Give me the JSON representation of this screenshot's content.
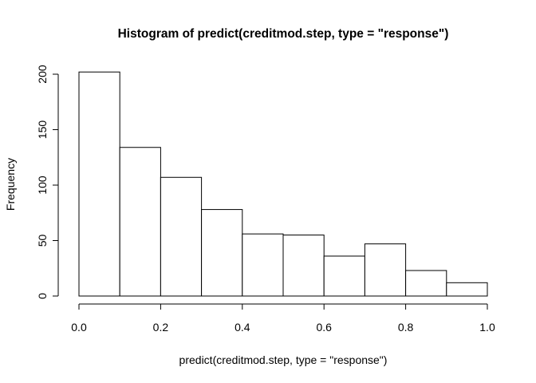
{
  "chart_data": {
    "type": "bar",
    "title": "Histogram of predict(creditmod.step, type = \"response\")",
    "xlabel": "predict(creditmod.step, type = \"response\")",
    "ylabel": "Frequency",
    "bins": [
      {
        "start": 0.0,
        "end": 0.1,
        "count": 202
      },
      {
        "start": 0.1,
        "end": 0.2,
        "count": 134
      },
      {
        "start": 0.2,
        "end": 0.3,
        "count": 107
      },
      {
        "start": 0.3,
        "end": 0.4,
        "count": 78
      },
      {
        "start": 0.4,
        "end": 0.5,
        "count": 56
      },
      {
        "start": 0.5,
        "end": 0.6,
        "count": 55
      },
      {
        "start": 0.6,
        "end": 0.7,
        "count": 36
      },
      {
        "start": 0.7,
        "end": 0.8,
        "count": 47
      },
      {
        "start": 0.8,
        "end": 0.9,
        "count": 23
      },
      {
        "start": 0.9,
        "end": 1.0,
        "count": 12
      }
    ],
    "xlim": [
      0,
      1
    ],
    "ylim": [
      0,
      200
    ],
    "x_ticks": [
      {
        "value": 0.0,
        "label": "0.0"
      },
      {
        "value": 0.2,
        "label": "0.2"
      },
      {
        "value": 0.4,
        "label": "0.4"
      },
      {
        "value": 0.6,
        "label": "0.6"
      },
      {
        "value": 0.8,
        "label": "0.8"
      },
      {
        "value": 1.0,
        "label": "1.0"
      }
    ],
    "y_ticks": [
      {
        "value": 0,
        "label": "0"
      },
      {
        "value": 50,
        "label": "50"
      },
      {
        "value": 100,
        "label": "100"
      },
      {
        "value": 150,
        "label": "150"
      },
      {
        "value": 200,
        "label": "200"
      }
    ],
    "grid": false,
    "bar_fill": "#ffffff",
    "bar_stroke": "#000000"
  }
}
